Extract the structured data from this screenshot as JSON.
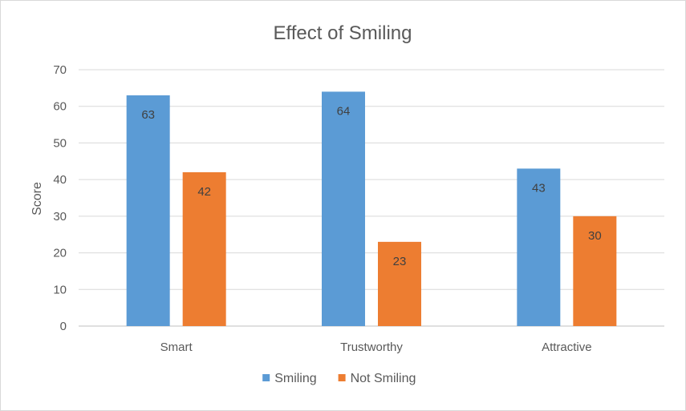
{
  "chart_data": {
    "type": "bar",
    "title": "Effect of Smiling",
    "xlabel": "",
    "ylabel": "Score",
    "categories": [
      "Smart",
      "Trustworthy",
      "Attractive"
    ],
    "series": [
      {
        "name": "Smiling",
        "color": "#5b9bd5",
        "values": [
          63,
          64,
          43
        ]
      },
      {
        "name": "Not Smiling",
        "color": "#ed7d31",
        "values": [
          42,
          23,
          30
        ]
      }
    ],
    "ylim": [
      0,
      70
    ],
    "yticks": [
      0,
      10,
      20,
      30,
      40,
      50,
      60,
      70
    ],
    "grid": true,
    "legend": "bottom",
    "data_labels": true
  }
}
